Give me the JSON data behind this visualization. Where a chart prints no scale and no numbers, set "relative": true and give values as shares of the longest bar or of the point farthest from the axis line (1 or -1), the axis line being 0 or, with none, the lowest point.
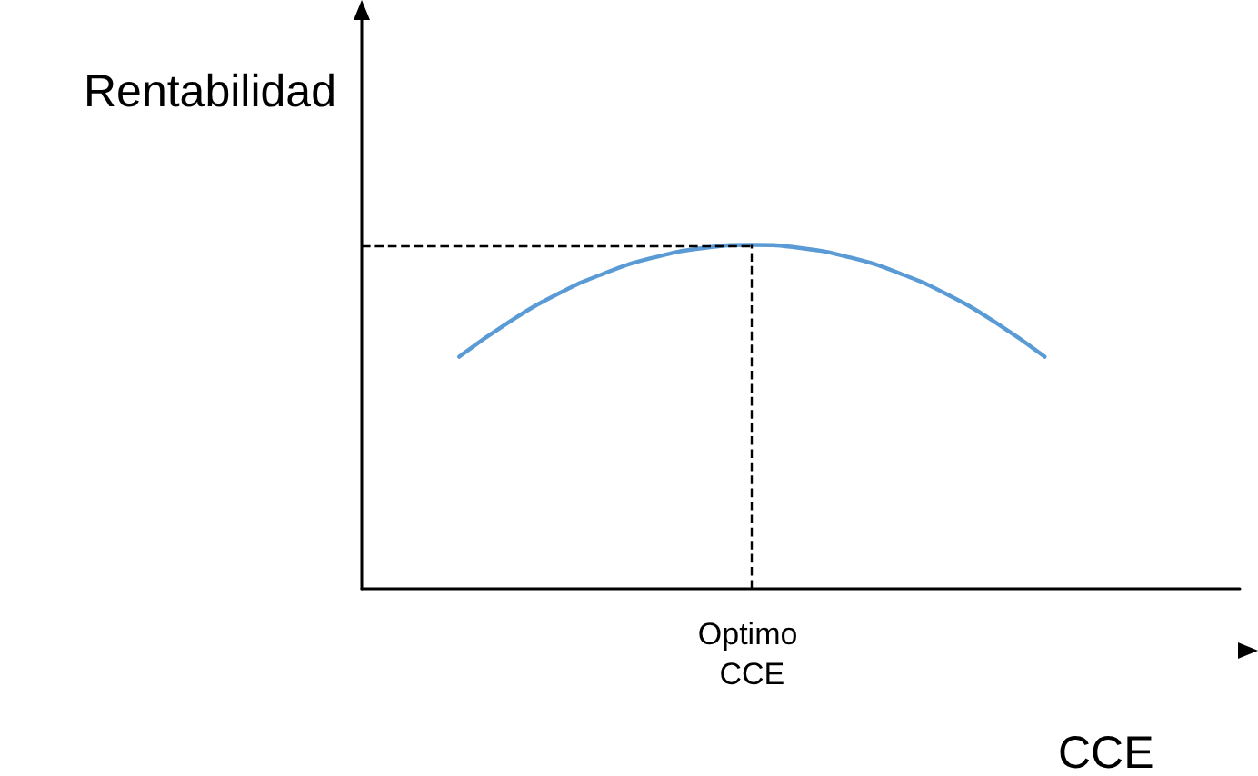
{
  "chart_data": {
    "type": "line",
    "relative": true,
    "ylabel": "Rentabilidad",
    "xlabel": "CCE",
    "categories": [
      null,
      null,
      null,
      null,
      null,
      null,
      null,
      null,
      null,
      null,
      null,
      null,
      null,
      null,
      null,
      null,
      null,
      null,
      null
    ],
    "series": [
      {
        "color": "#5b9bd5",
        "values": [
          null,
          null,
          0.675,
          0.774,
          0.856,
          0.919,
          0.964,
          0.991,
          1,
          0.991,
          0.964,
          0.919,
          0.856,
          0.774,
          0.675,
          null,
          null,
          null,
          null
        ]
      }
    ],
    "ref_lines": [
      {
        "axis": "y",
        "value": 1,
        "line_style": "dashed",
        "color": "#000000"
      },
      {
        "axis": "x",
        "label": "Optimo CCE",
        "line_style": "dashed",
        "color": "#000000"
      }
    ],
    "grid": false,
    "marker": "none"
  }
}
